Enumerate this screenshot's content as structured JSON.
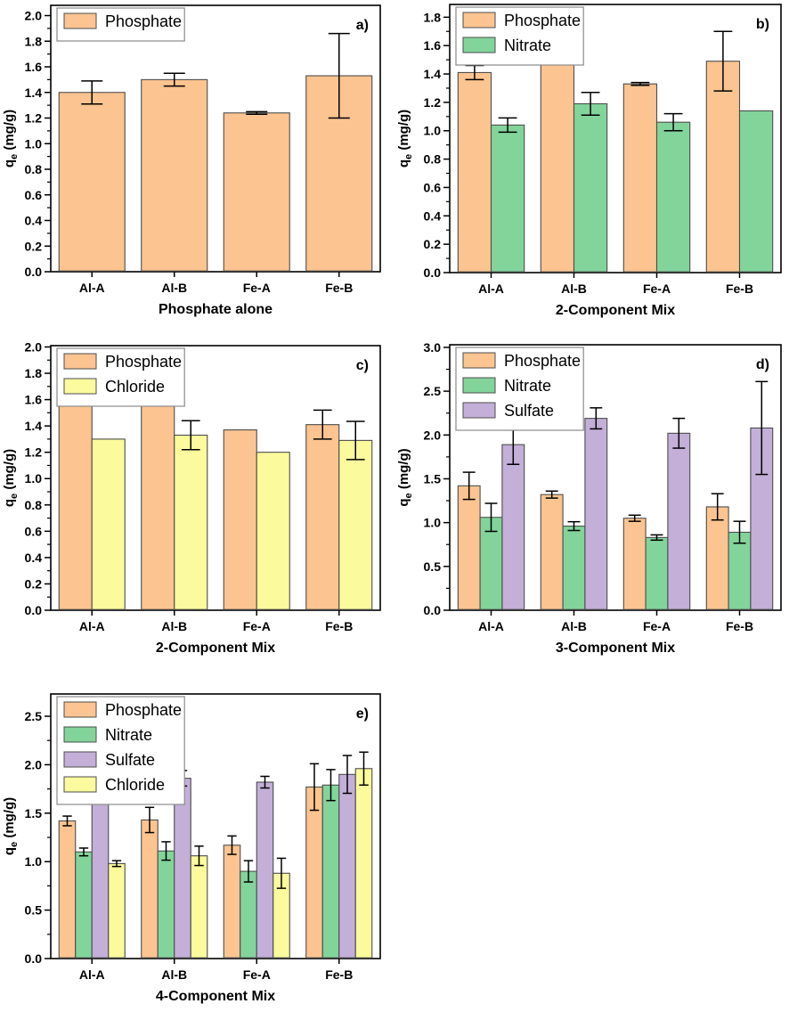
{
  "figure": {
    "description": "Five-panel bar chart figure of equilibrium adsorption capacity q_e (mg/g) for four adsorbents under different anion mixtures",
    "background": "#ffffff"
  },
  "style": {
    "bar_border": "#4d4d4d",
    "error_color": "#000000",
    "axis_color": "#000000",
    "legend_border": "#8a8a8a",
    "legend_background": "#ffffff",
    "series_colors": {
      "Phosphate": "#FBC490",
      "Nitrate": "#82D49B",
      "Sulfate": "#C3AFD8",
      "Chloride": "#FBFA9C"
    }
  },
  "chart_data": [
    {
      "id": "a",
      "type": "bar",
      "letter": "a)",
      "xlabel": "Phosphate alone",
      "ylabel": {
        "pre": "q",
        "sub": "e",
        "post": " (mg/g)"
      },
      "ylim": [
        0,
        2.08
      ],
      "ytick_step": 0.2,
      "tick_decimals": 1,
      "grid": false,
      "legend_position": "top-left",
      "categories": [
        "Al-A",
        "Al-B",
        "Fe-A",
        "Fe-B"
      ],
      "series": [
        {
          "name": "Phosphate",
          "color": "#FBC490",
          "values": [
            1.4,
            1.5,
            1.24,
            1.53
          ],
          "errors": [
            0.09,
            0.05,
            0.01,
            0.33
          ]
        }
      ]
    },
    {
      "id": "b",
      "type": "bar",
      "letter": "b)",
      "xlabel": "2-Component Mix",
      "ylabel": {
        "pre": "q",
        "sub": "e",
        "post": " (mg/g)"
      },
      "ylim": [
        0,
        1.89
      ],
      "ytick_step": 0.2,
      "tick_decimals": 1,
      "grid": false,
      "legend_position": "top-left",
      "categories": [
        "Al-A",
        "Al-B",
        "Fe-A",
        "Fe-B"
      ],
      "series": [
        {
          "name": "Phosphate",
          "color": "#FBC490",
          "values": [
            1.41,
            1.54,
            1.33,
            1.49
          ],
          "errors": [
            0.05,
            0,
            0.01,
            0.21
          ]
        },
        {
          "name": "Nitrate",
          "color": "#82D49B",
          "values": [
            1.04,
            1.19,
            1.06,
            1.14
          ],
          "errors": [
            0.05,
            0.08,
            0.06,
            0
          ]
        }
      ]
    },
    {
      "id": "c",
      "type": "bar",
      "letter": "c)",
      "xlabel": "2-Component Mix",
      "ylabel": {
        "pre": "q",
        "sub": "e",
        "post": " (mg/g)"
      },
      "ylim": [
        0,
        2.01
      ],
      "ytick_step": 0.2,
      "tick_decimals": 1,
      "grid": false,
      "legend_position": "top-left",
      "categories": [
        "Al-A",
        "Al-B",
        "Fe-A",
        "Fe-B"
      ],
      "series": [
        {
          "name": "Phosphate",
          "color": "#FBC490",
          "values": [
            1.61,
            1.6,
            1.37,
            1.41
          ],
          "errors": [
            0.01,
            0.03,
            0,
            0.11
          ]
        },
        {
          "name": "Chloride",
          "color": "#FBFA9C",
          "values": [
            1.3,
            1.33,
            1.2,
            1.29
          ],
          "errors": [
            0,
            0.11,
            0,
            0.145
          ]
        }
      ]
    },
    {
      "id": "d",
      "type": "bar",
      "letter": "d)",
      "xlabel": "3-Component Mix",
      "ylabel": {
        "pre": "q",
        "sub": "e",
        "post": " (mg/g)"
      },
      "ylim": [
        0,
        3.03
      ],
      "ytick_step": 0.5,
      "tick_decimals": 1,
      "grid": false,
      "legend_position": "top-left",
      "categories": [
        "Al-A",
        "Al-B",
        "Fe-A",
        "Fe-B"
      ],
      "series": [
        {
          "name": "Phosphate",
          "color": "#FBC490",
          "values": [
            1.42,
            1.32,
            1.05,
            1.18
          ],
          "errors": [
            0.155,
            0.04,
            0.035,
            0.15
          ]
        },
        {
          "name": "Nitrate",
          "color": "#82D49B",
          "values": [
            1.06,
            0.96,
            0.83,
            0.89
          ],
          "errors": [
            0.16,
            0.05,
            0.03,
            0.125
          ]
        },
        {
          "name": "Sulfate",
          "color": "#C3AFD8",
          "values": [
            1.89,
            2.19,
            2.02,
            2.08
          ],
          "errors": [
            0.225,
            0.12,
            0.17,
            0.53
          ]
        }
      ]
    },
    {
      "id": "e",
      "type": "bar",
      "letter": "e)",
      "xlabel": "4-Component Mix",
      "ylabel": {
        "pre": "q",
        "sub": "e",
        "post": " (mg/g)"
      },
      "ylim": [
        0,
        2.73
      ],
      "ytick_step": 0.5,
      "tick_decimals": 1,
      "grid": false,
      "legend_position": "top-left",
      "categories": [
        "Al-A",
        "Al-B",
        "Fe-A",
        "Fe-B"
      ],
      "series": [
        {
          "name": "Phosphate",
          "color": "#FBC490",
          "values": [
            1.42,
            1.43,
            1.17,
            1.77
          ],
          "errors": [
            0.05,
            0.13,
            0.095,
            0.24
          ]
        },
        {
          "name": "Nitrate",
          "color": "#82D49B",
          "values": [
            1.1,
            1.11,
            0.9,
            1.79
          ],
          "errors": [
            0.04,
            0.095,
            0.11,
            0.16
          ]
        },
        {
          "name": "Sulfate",
          "color": "#C3AFD8",
          "values": [
            1.86,
            1.86,
            1.82,
            1.9
          ],
          "errors": [
            0.08,
            0.08,
            0.06,
            0.195
          ]
        },
        {
          "name": "Chloride",
          "color": "#FBFA9C",
          "values": [
            0.98,
            1.06,
            0.88,
            1.96
          ],
          "errors": [
            0.03,
            0.1,
            0.155,
            0.17
          ]
        }
      ]
    }
  ]
}
